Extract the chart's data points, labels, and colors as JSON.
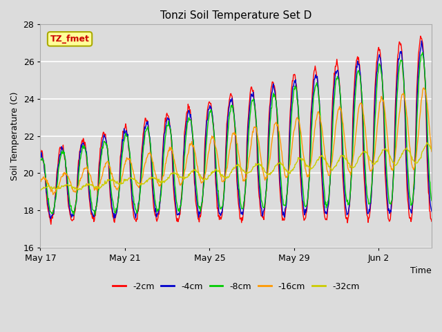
{
  "title": "Tonzi Soil Temperature Set D",
  "xlabel": "Time",
  "ylabel": "Soil Temperature (C)",
  "ylim": [
    16,
    28
  ],
  "n_days": 18.5,
  "xtick_labels": [
    "May 17",
    "May 21",
    "May 25",
    "May 29",
    "Jun 2"
  ],
  "xtick_positions": [
    0,
    4,
    8,
    12,
    16
  ],
  "legend_labels": [
    "-2cm",
    "-4cm",
    "-8cm",
    "-16cm",
    "-32cm"
  ],
  "line_colors": [
    "#ff0000",
    "#0000cc",
    "#00cc00",
    "#ff9900",
    "#cccc00"
  ],
  "annotation_text": "TZ_fmet",
  "annotation_bg": "#ffff99",
  "annotation_border": "#aaaa00",
  "plot_bg": "#dcdcdc",
  "fig_bg": "#dcdcdc"
}
